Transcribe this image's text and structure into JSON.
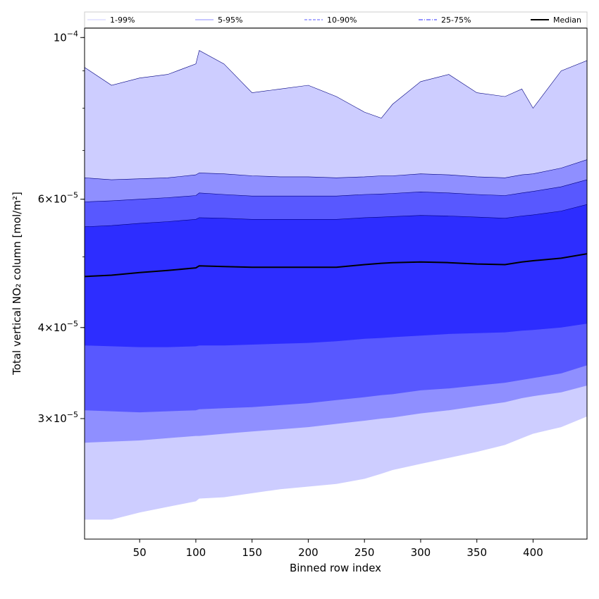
{
  "chart_data": {
    "type": "area",
    "xlabel": "Binned row index",
    "ylabel": "Total vertical NO₂ column [mol/m²]",
    "xlim": [
      1,
      448
    ],
    "ylim": [
      2.05e-05,
      0.000103
    ],
    "y_scale": "log",
    "x_ticks": [
      50,
      100,
      150,
      200,
      250,
      300,
      350,
      400
    ],
    "y_ticks": [
      {
        "value": 3e-05,
        "mantissa": "3",
        "base": "10",
        "exp": "−5"
      },
      {
        "value": 4e-05,
        "mantissa": "4",
        "base": "10",
        "exp": "−5"
      },
      {
        "value": 6e-05,
        "mantissa": "6",
        "base": "10",
        "exp": "−5"
      },
      {
        "value": 0.0001,
        "mantissa": "",
        "base": "10",
        "exp": "−4"
      }
    ],
    "x": [
      1,
      25,
      50,
      75,
      100,
      103,
      125,
      150,
      175,
      200,
      225,
      250,
      265,
      275,
      300,
      325,
      350,
      375,
      390,
      400,
      425,
      448
    ],
    "bands": [
      {
        "name": "1-99%",
        "color": "#cdcdff",
        "lower": [
          2.18e-05,
          2.18e-05,
          2.23e-05,
          2.27e-05,
          2.31e-05,
          2.33e-05,
          2.34e-05,
          2.37e-05,
          2.4e-05,
          2.42e-05,
          2.44e-05,
          2.48e-05,
          2.52e-05,
          2.55e-05,
          2.6e-05,
          2.65e-05,
          2.7e-05,
          2.76e-05,
          2.82e-05,
          2.86e-05,
          2.92e-05,
          3.02e-05
        ],
        "upper": [
          9.1e-05,
          8.6e-05,
          8.8e-05,
          8.9e-05,
          9.2e-05,
          9.6e-05,
          9.2e-05,
          8.4e-05,
          8.5e-05,
          8.6e-05,
          8.3e-05,
          7.9e-05,
          7.75e-05,
          8.1e-05,
          8.7e-05,
          8.9e-05,
          8.4e-05,
          8.3e-05,
          8.5e-05,
          8e-05,
          9e-05,
          9.3e-05
        ]
      },
      {
        "name": "5-95%",
        "color": "#8f8fff",
        "lower": [
          2.78e-05,
          2.79e-05,
          2.8e-05,
          2.82e-05,
          2.84e-05,
          2.84e-05,
          2.86e-05,
          2.88e-05,
          2.9e-05,
          2.92e-05,
          2.95e-05,
          2.98e-05,
          3e-05,
          3.01e-05,
          3.05e-05,
          3.08e-05,
          3.12e-05,
          3.16e-05,
          3.2e-05,
          3.22e-05,
          3.26e-05,
          3.33e-05
        ],
        "upper": [
          6.42e-05,
          6.38e-05,
          6.4e-05,
          6.42e-05,
          6.48e-05,
          6.52e-05,
          6.5e-05,
          6.46e-05,
          6.44e-05,
          6.44e-05,
          6.42e-05,
          6.44e-05,
          6.46e-05,
          6.46e-05,
          6.5e-05,
          6.48e-05,
          6.44e-05,
          6.42e-05,
          6.48e-05,
          6.5e-05,
          6.62e-05,
          6.8e-05
        ]
      },
      {
        "name": "10-90%",
        "color": "#5858ff",
        "lower": [
          3.08e-05,
          3.07e-05,
          3.06e-05,
          3.07e-05,
          3.08e-05,
          3.09e-05,
          3.1e-05,
          3.11e-05,
          3.13e-05,
          3.15e-05,
          3.18e-05,
          3.21e-05,
          3.23e-05,
          3.24e-05,
          3.28e-05,
          3.3e-05,
          3.33e-05,
          3.36e-05,
          3.39e-05,
          3.41e-05,
          3.46e-05,
          3.55e-05
        ],
        "upper": [
          5.95e-05,
          5.97e-05,
          6e-05,
          6.03e-05,
          6.07e-05,
          6.12e-05,
          6.09e-05,
          6.06e-05,
          6.06e-05,
          6.06e-05,
          6.06e-05,
          6.09e-05,
          6.1e-05,
          6.11e-05,
          6.14e-05,
          6.12e-05,
          6.09e-05,
          6.07e-05,
          6.12e-05,
          6.15e-05,
          6.24e-05,
          6.38e-05
        ]
      },
      {
        "name": "25-75%",
        "color": "#2d2dff",
        "lower": [
          3.78e-05,
          3.77e-05,
          3.76e-05,
          3.76e-05,
          3.77e-05,
          3.78e-05,
          3.78e-05,
          3.79e-05,
          3.8e-05,
          3.81e-05,
          3.83e-05,
          3.86e-05,
          3.87e-05,
          3.88e-05,
          3.9e-05,
          3.92e-05,
          3.93e-05,
          3.94e-05,
          3.96e-05,
          3.97e-05,
          4e-05,
          4.05e-05
        ],
        "upper": [
          5.5e-05,
          5.52e-05,
          5.56e-05,
          5.59e-05,
          5.63e-05,
          5.66e-05,
          5.65e-05,
          5.63e-05,
          5.63e-05,
          5.63e-05,
          5.63e-05,
          5.66e-05,
          5.67e-05,
          5.68e-05,
          5.7e-05,
          5.69e-05,
          5.67e-05,
          5.65e-05,
          5.69e-05,
          5.71e-05,
          5.78e-05,
          5.9e-05
        ]
      }
    ],
    "median": {
      "name": "Median",
      "color": "#000000",
      "values": [
        4.7e-05,
        4.72e-05,
        4.76e-05,
        4.79e-05,
        4.83e-05,
        4.86e-05,
        4.85e-05,
        4.84e-05,
        4.84e-05,
        4.84e-05,
        4.84e-05,
        4.88e-05,
        4.9e-05,
        4.91e-05,
        4.92e-05,
        4.91e-05,
        4.89e-05,
        4.88e-05,
        4.92e-05,
        4.94e-05,
        4.98e-05,
        5.05e-05
      ]
    },
    "legend": {
      "placement": "top",
      "entries": [
        {
          "label": "1-99%",
          "color": "#cdcdff",
          "style": "solid"
        },
        {
          "label": "5-95%",
          "color": "#8f8fff",
          "style": "solid"
        },
        {
          "label": "10-90%",
          "color": "#5858ff",
          "style": "dashed"
        },
        {
          "label": "25-75%",
          "color": "#2d2dff",
          "style": "dashdot"
        },
        {
          "label": "Median",
          "color": "#000000",
          "style": "solid-thick"
        }
      ]
    },
    "grid": false
  }
}
